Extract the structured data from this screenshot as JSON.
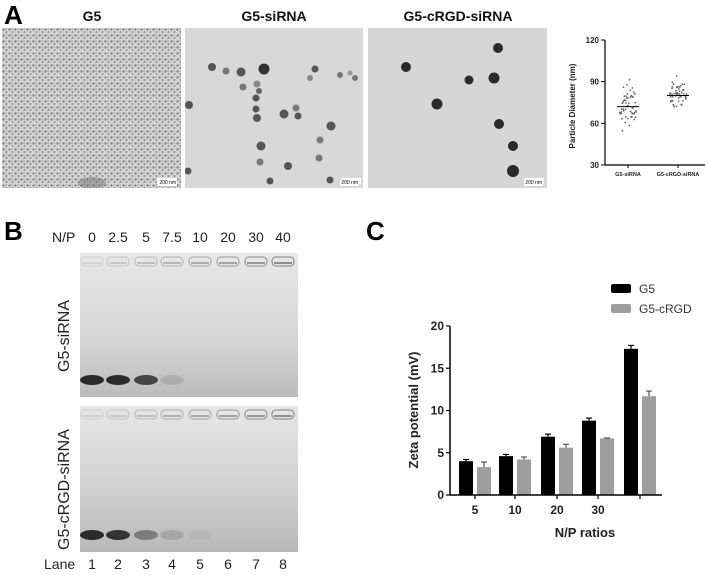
{
  "figure": {
    "panel_labels": {
      "a": "A",
      "b": "B",
      "c": "C"
    }
  },
  "panel_a": {
    "tem_images": [
      {
        "title": "G5",
        "scale_bar": "200 nm",
        "description": "dense small dendrimer particles"
      },
      {
        "title": "G5-siRNA",
        "scale_bar": "200 nm",
        "description": "scattered spherical nanoparticles"
      },
      {
        "title": "G5-cRGD-siRNA",
        "scale_bar": "200 nm",
        "description": "sparse dark spherical nanoparticles"
      }
    ]
  },
  "panel_b": {
    "np_header": "N/P",
    "np_values": [
      "0",
      "2.5",
      "5",
      "7.5",
      "10",
      "20",
      "30",
      "40"
    ],
    "lane_header": "Lane",
    "lane_numbers": [
      "1",
      "2",
      "3",
      "4",
      "5",
      "6",
      "7",
      "8"
    ],
    "gels": [
      {
        "label": "G5-siRNA",
        "free_band_intensity": [
          0.9,
          0.9,
          0.75,
          0.12,
          0,
          0,
          0,
          0
        ]
      },
      {
        "label": "G5-cRGD-siRNA",
        "free_band_intensity": [
          0.9,
          0.85,
          0.4,
          0.15,
          0.05,
          0,
          0,
          0
        ]
      }
    ]
  },
  "chart_data": [
    {
      "type": "scatter",
      "title": "",
      "xlabel": "",
      "ylabel": "Particle Diameter (nm)",
      "categories": [
        "G5-siRNA",
        "G5-cRGD-siRNA"
      ],
      "ylim": [
        30,
        120
      ],
      "yticks": [
        30,
        60,
        90,
        120
      ],
      "series": [
        {
          "name": "G5-siRNA",
          "mean": 72,
          "min": 50,
          "max": 99
        },
        {
          "name": "G5-cRGD-siRNA",
          "mean": 80,
          "min": 68,
          "max": 95
        }
      ],
      "grid": false
    },
    {
      "type": "bar",
      "title": "",
      "xlabel": "N/P ratios",
      "ylabel": "Zeta potential (mV)",
      "categories": [
        "5",
        "10",
        "20",
        "30",
        ""
      ],
      "ylim": [
        0,
        20
      ],
      "yticks": [
        0,
        5,
        10,
        15,
        20
      ],
      "series": [
        {
          "name": "G5",
          "color": "#000000",
          "values": [
            4.0,
            4.6,
            6.9,
            8.8,
            17.3
          ],
          "errors": [
            0.2,
            0.2,
            0.3,
            0.3,
            0.4
          ]
        },
        {
          "name": "G5-cRGD",
          "color": "#9e9e9e",
          "values": [
            3.3,
            4.2,
            5.6,
            6.7,
            11.7
          ],
          "errors": [
            0.6,
            0.3,
            0.4,
            0.05,
            0.6
          ]
        }
      ],
      "legend_position": "top-right",
      "grid": false
    }
  ]
}
